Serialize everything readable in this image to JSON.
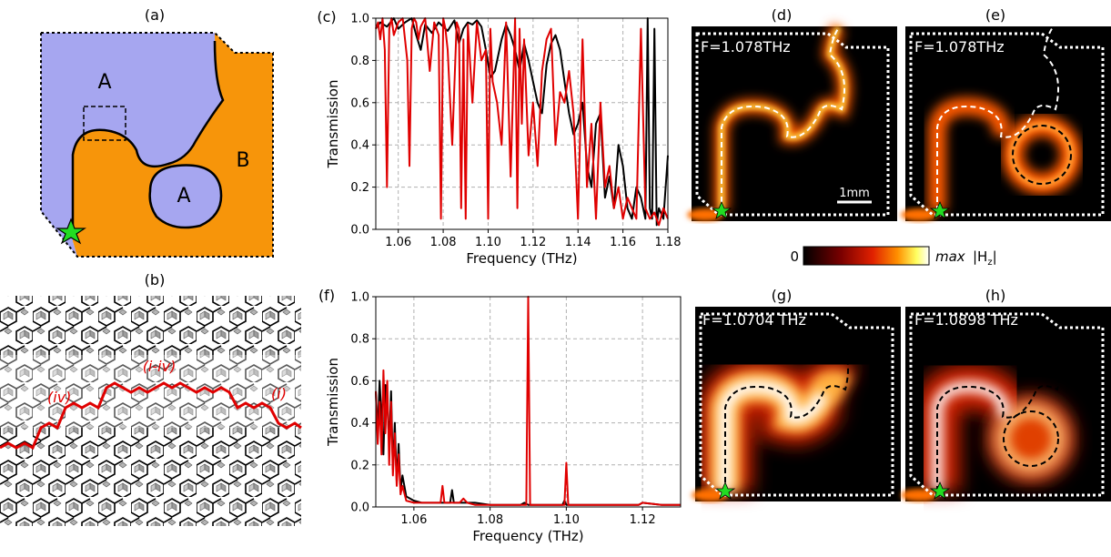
{
  "panels": {
    "a": "(a)",
    "b": "(b)",
    "c": "(c)",
    "d": "(d)",
    "e": "(e)",
    "f": "(f)",
    "g": "(g)",
    "h": "(h)"
  },
  "schematic": {
    "region_a_upper": "A",
    "region_a_island": "A",
    "region_b": "B",
    "colors": {
      "region_a": "#a6a6f0",
      "region_b": "#f7950a",
      "star": "#22dd22"
    }
  },
  "lattice": {
    "label_left": "(iv)",
    "label_middle": "(i-iv)",
    "label_right": "(i)",
    "path_color": "#e00000"
  },
  "colorbar": {
    "min_label": "0",
    "max_label": "max",
    "quantity_label": "|H",
    "quantity_subscript": "z",
    "quantity_close": "|"
  },
  "scale_bar_label": "1mm",
  "field_maps": {
    "d": {
      "freq_label": "F=1.078THz"
    },
    "e": {
      "freq_label": "F=1.078THz"
    },
    "g": {
      "freq_label": "F=1.0704 THz"
    },
    "h": {
      "freq_label": "F=1.0898 THz"
    }
  },
  "chart_data": [
    {
      "id": "c",
      "type": "line",
      "xlabel": "Frequency (THz)",
      "ylabel": "Transmission",
      "xlim": [
        1.05,
        1.18
      ],
      "ylim": [
        0.0,
        1.0
      ],
      "xticks": [
        "1.06",
        "1.08",
        "1.10",
        "1.12",
        "1.14",
        "1.16",
        "1.18"
      ],
      "xtick_values": [
        1.06,
        1.08,
        1.1,
        1.12,
        1.14,
        1.16,
        1.18
      ],
      "yticks": [
        "0.0",
        "0.2",
        "0.4",
        "0.6",
        "0.8",
        "1.0"
      ],
      "ytick_values": [
        0.0,
        0.2,
        0.4,
        0.6,
        0.8,
        1.0
      ],
      "grid": true,
      "series": [
        {
          "name": "black",
          "color": "#000000",
          "x": [
            1.05,
            1.052,
            1.055,
            1.058,
            1.06,
            1.063,
            1.066,
            1.068,
            1.07,
            1.072,
            1.075,
            1.078,
            1.08,
            1.082,
            1.085,
            1.087,
            1.089,
            1.091,
            1.093,
            1.095,
            1.097,
            1.099,
            1.101,
            1.103,
            1.106,
            1.108,
            1.11,
            1.112,
            1.114,
            1.116,
            1.118,
            1.12,
            1.122,
            1.124,
            1.126,
            1.128,
            1.13,
            1.132,
            1.134,
            1.136,
            1.138,
            1.14,
            1.142,
            1.144,
            1.146,
            1.148,
            1.15,
            1.152,
            1.154,
            1.156,
            1.158,
            1.16,
            1.162,
            1.164,
            1.166,
            1.168,
            1.17,
            1.171,
            1.172,
            1.173,
            1.174,
            1.175,
            1.176,
            1.178,
            1.18
          ],
          "y": [
            0.95,
            0.98,
            0.96,
            1.0,
            0.95,
            0.98,
            1.0,
            0.92,
            0.85,
            0.97,
            0.93,
            0.98,
            0.96,
            0.94,
            0.99,
            0.88,
            0.95,
            0.98,
            0.97,
            0.99,
            0.96,
            0.85,
            0.72,
            0.75,
            0.9,
            0.97,
            0.92,
            0.85,
            0.75,
            0.88,
            0.8,
            0.7,
            0.6,
            0.55,
            0.78,
            0.88,
            0.92,
            0.85,
            0.7,
            0.55,
            0.45,
            0.5,
            0.6,
            0.3,
            0.2,
            0.5,
            0.55,
            0.15,
            0.25,
            0.1,
            0.4,
            0.3,
            0.1,
            0.05,
            0.2,
            0.15,
            0.05,
            1.0,
            0.1,
            0.05,
            0.95,
            0.02,
            0.1,
            0.05,
            0.35
          ]
        },
        {
          "name": "red",
          "color": "#e00000",
          "x": [
            1.05,
            1.051,
            1.052,
            1.053,
            1.054,
            1.055,
            1.056,
            1.057,
            1.058,
            1.06,
            1.062,
            1.064,
            1.065,
            1.066,
            1.067,
            1.068,
            1.069,
            1.07,
            1.072,
            1.074,
            1.076,
            1.078,
            1.079,
            1.08,
            1.081,
            1.082,
            1.084,
            1.086,
            1.087,
            1.088,
            1.089,
            1.09,
            1.091,
            1.093,
            1.095,
            1.097,
            1.099,
            1.1,
            1.101,
            1.102,
            1.104,
            1.106,
            1.108,
            1.11,
            1.112,
            1.113,
            1.114,
            1.115,
            1.116,
            1.118,
            1.12,
            1.122,
            1.124,
            1.126,
            1.128,
            1.13,
            1.132,
            1.134,
            1.136,
            1.138,
            1.14,
            1.142,
            1.144,
            1.146,
            1.148,
            1.15,
            1.152,
            1.154,
            1.156,
            1.158,
            1.16,
            1.162,
            1.164,
            1.166,
            1.168,
            1.17,
            1.172,
            1.174,
            1.176,
            1.178,
            1.18
          ],
          "y": [
            0.95,
            0.98,
            0.9,
            1.0,
            0.85,
            0.2,
            0.95,
            1.0,
            0.92,
            0.98,
            1.0,
            0.8,
            0.3,
            0.95,
            1.0,
            0.98,
            0.9,
            0.96,
            1.0,
            0.75,
            0.98,
            0.92,
            0.05,
            1.0,
            0.95,
            0.85,
            0.4,
            0.98,
            0.95,
            0.1,
            0.9,
            0.05,
            0.97,
            0.6,
            0.98,
            0.8,
            0.85,
            0.05,
            0.95,
            0.7,
            0.6,
            0.4,
            0.98,
            0.25,
            1.0,
            0.1,
            0.95,
            0.5,
            0.9,
            0.35,
            0.6,
            0.3,
            0.75,
            0.9,
            0.95,
            0.4,
            0.65,
            0.6,
            0.75,
            0.55,
            0.05,
            0.9,
            0.2,
            0.5,
            0.05,
            0.6,
            0.2,
            0.3,
            0.1,
            0.2,
            0.05,
            0.15,
            0.1,
            0.05,
            0.95,
            0.1,
            0.05,
            0.08,
            0.02,
            0.1,
            0.05
          ]
        }
      ]
    },
    {
      "id": "f",
      "type": "line",
      "xlabel": "Frequency (THz)",
      "ylabel": "Transmission",
      "xlim": [
        1.05,
        1.13
      ],
      "ylim": [
        0.0,
        1.0
      ],
      "xticks": [
        "1.06",
        "1.08",
        "1.10",
        "1.12"
      ],
      "xtick_values": [
        1.06,
        1.08,
        1.1,
        1.12
      ],
      "yticks": [
        "0.0",
        "0.2",
        "0.4",
        "0.6",
        "0.8",
        "1.0"
      ],
      "ytick_values": [
        0.0,
        0.2,
        0.4,
        0.6,
        0.8,
        1.0
      ],
      "grid": true,
      "series": [
        {
          "name": "black",
          "color": "#000000",
          "x": [
            1.05,
            1.0505,
            1.051,
            1.0515,
            1.052,
            1.0525,
            1.053,
            1.0535,
            1.054,
            1.0545,
            1.055,
            1.0555,
            1.056,
            1.0565,
            1.057,
            1.058,
            1.06,
            1.062,
            1.064,
            1.066,
            1.068,
            1.0695,
            1.07,
            1.0705,
            1.072,
            1.074,
            1.076,
            1.08,
            1.085,
            1.088,
            1.089,
            1.09,
            1.091,
            1.095,
            1.099,
            1.0995,
            1.1,
            1.105,
            1.11,
            1.115,
            1.119,
            1.12,
            1.125,
            1.13
          ],
          "y": [
            0.55,
            0.35,
            0.6,
            0.42,
            0.25,
            0.58,
            0.5,
            0.3,
            0.55,
            0.18,
            0.4,
            0.12,
            0.3,
            0.08,
            0.15,
            0.05,
            0.03,
            0.02,
            0.02,
            0.02,
            0.02,
            0.02,
            0.08,
            0.02,
            0.02,
            0.02,
            0.02,
            0.01,
            0.01,
            0.01,
            0.02,
            0.01,
            0.01,
            0.01,
            0.01,
            0.03,
            0.01,
            0.01,
            0.01,
            0.01,
            0.01,
            0.02,
            0.01,
            0.01
          ]
        },
        {
          "name": "red",
          "color": "#e00000",
          "x": [
            1.05,
            1.0505,
            1.051,
            1.0515,
            1.052,
            1.0525,
            1.053,
            1.0535,
            1.054,
            1.0545,
            1.055,
            1.0555,
            1.056,
            1.0565,
            1.057,
            1.058,
            1.06,
            1.062,
            1.064,
            1.066,
            1.067,
            1.0675,
            1.068,
            1.07,
            1.072,
            1.073,
            1.074,
            1.076,
            1.08,
            1.085,
            1.0895,
            1.09,
            1.0905,
            1.095,
            1.0995,
            1.1,
            1.1005,
            1.105,
            1.11,
            1.115,
            1.119,
            1.12,
            1.125,
            1.13
          ],
          "y": [
            0.55,
            0.3,
            0.5,
            0.25,
            0.65,
            0.35,
            0.6,
            0.2,
            0.5,
            0.15,
            0.35,
            0.1,
            0.25,
            0.06,
            0.1,
            0.03,
            0.02,
            0.02,
            0.02,
            0.02,
            0.02,
            0.1,
            0.02,
            0.02,
            0.02,
            0.04,
            0.02,
            0.01,
            0.01,
            0.01,
            0.01,
            1.0,
            0.01,
            0.01,
            0.01,
            0.21,
            0.01,
            0.01,
            0.01,
            0.01,
            0.01,
            0.02,
            0.01,
            0.01
          ]
        }
      ]
    }
  ]
}
